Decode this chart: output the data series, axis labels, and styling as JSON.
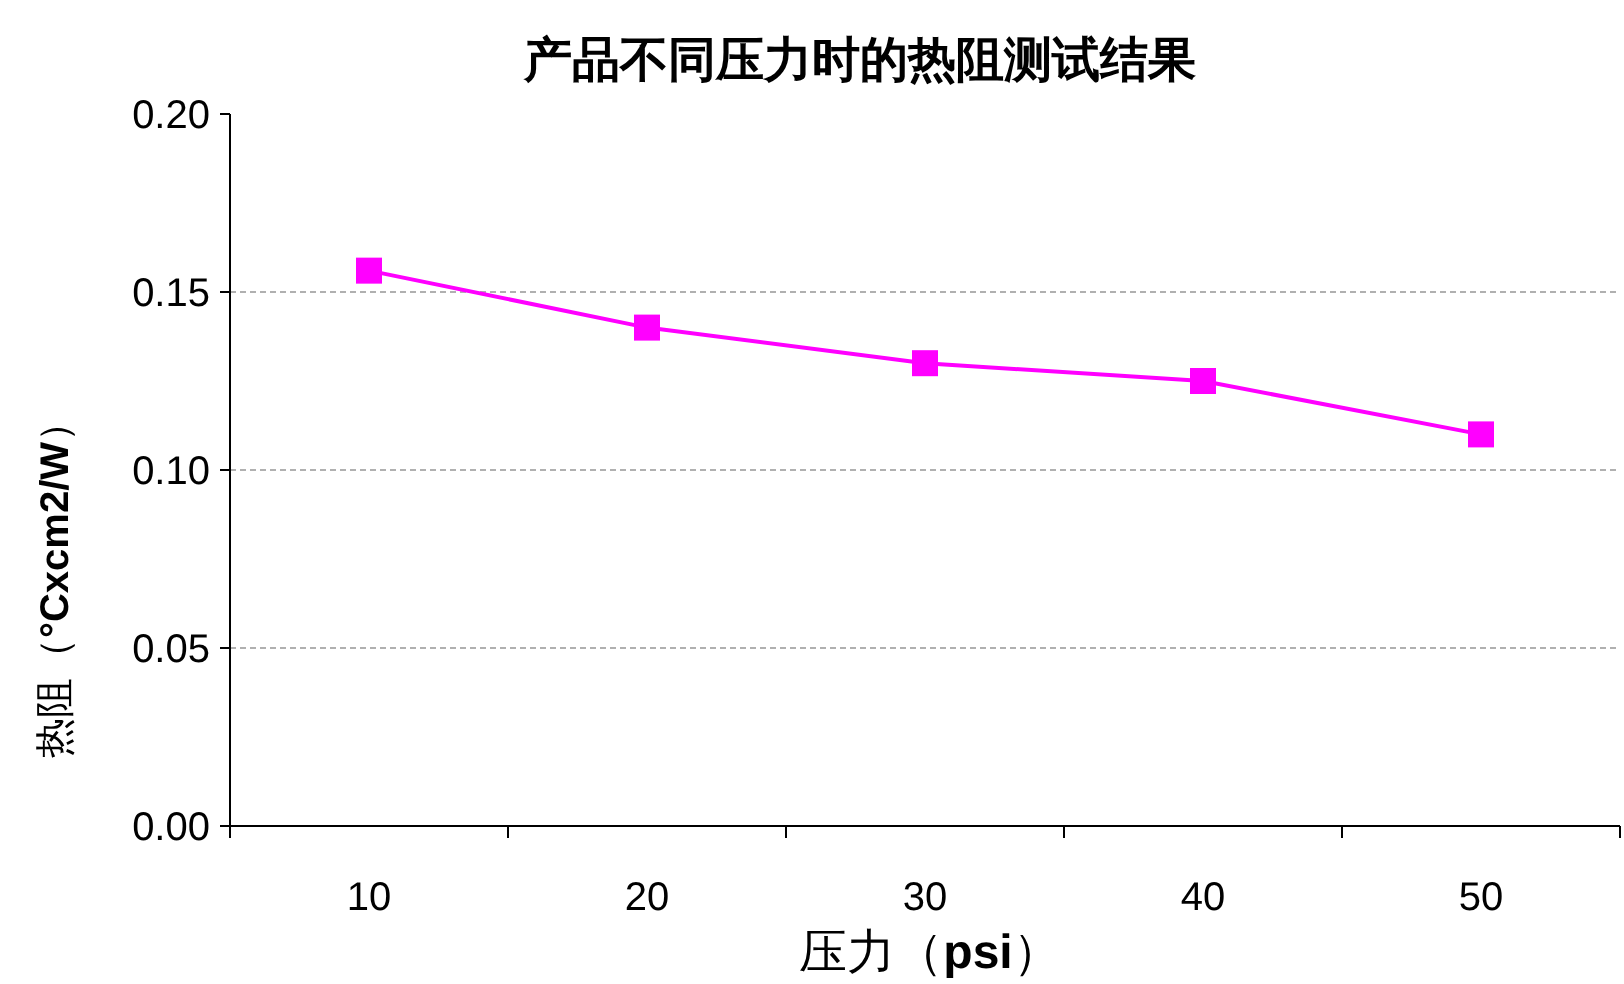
{
  "chart_data": {
    "type": "line",
    "title": "产品不同压力时的热阻测试结果",
    "xlabel": "压力（**psi**）",
    "ylabel": "热阻（**°Cxcm2/W**）",
    "categories": [
      "10",
      "20",
      "30",
      "40",
      "50"
    ],
    "series": [
      {
        "color": "#ff00ff",
        "values": [
          0.156,
          0.14,
          0.13,
          0.125,
          0.11
        ]
      }
    ],
    "ylim": [
      0,
      0.2
    ],
    "yticks": [
      {
        "value": 0,
        "label": "0.00"
      },
      {
        "value": 0.05,
        "label": "0.05"
      },
      {
        "value": 0.1,
        "label": "0.10"
      },
      {
        "value": 0.15,
        "label": "0.15"
      },
      {
        "value": 0.2,
        "label": "0.20"
      }
    ],
    "grid": "y",
    "marker": "square",
    "line_style": "solid"
  }
}
